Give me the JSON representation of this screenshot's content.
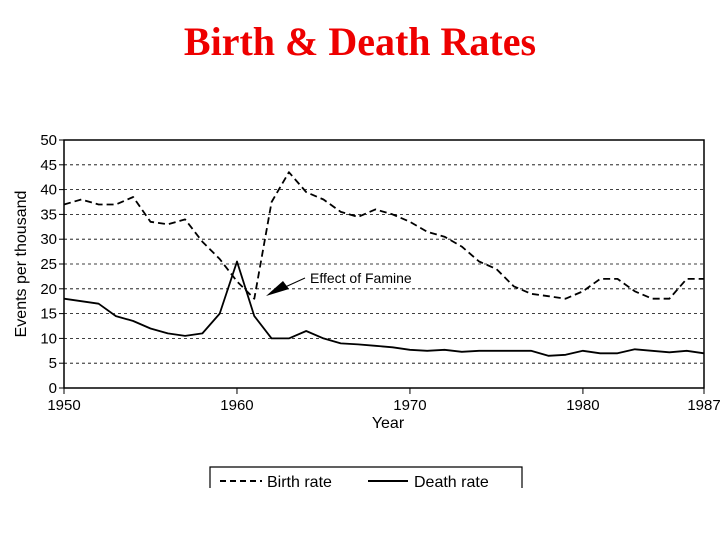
{
  "slide": {
    "title": "Birth & Death Rates"
  },
  "chart_data": {
    "type": "line",
    "title": "Birth & Death Rates",
    "xlabel": "Year",
    "ylabel": "Events per thousand",
    "xlim": [
      1950,
      1987
    ],
    "ylim": [
      0,
      50
    ],
    "yticks": [
      0,
      5,
      10,
      15,
      20,
      25,
      30,
      35,
      40,
      45,
      50
    ],
    "xticks": [
      1950,
      1960,
      1970,
      1980,
      1987
    ],
    "grid": "horizontal-dashed",
    "legend_position": "bottom",
    "annotation": {
      "text": "Effect of Famine",
      "x": 1961,
      "y": 19
    },
    "series": [
      {
        "name": "Birth rate",
        "style": "dashed",
        "x": [
          1950,
          1951,
          1952,
          1953,
          1954,
          1955,
          1956,
          1957,
          1958,
          1959,
          1960,
          1961,
          1962,
          1963,
          1964,
          1965,
          1966,
          1967,
          1968,
          1969,
          1970,
          1971,
          1972,
          1973,
          1974,
          1975,
          1976,
          1977,
          1978,
          1979,
          1980,
          1981,
          1982,
          1983,
          1984,
          1985,
          1986,
          1987
        ],
        "values": [
          37,
          38,
          37,
          37,
          38.5,
          33.5,
          33,
          34,
          29.5,
          26,
          21.5,
          18,
          37.5,
          43.5,
          39.5,
          38,
          35.5,
          34.5,
          36,
          35,
          33.5,
          31.5,
          30.5,
          28.5,
          25.5,
          24,
          20.5,
          19,
          18.5,
          18,
          19.5,
          22,
          22,
          19.5,
          18,
          18,
          22,
          22
        ]
      },
      {
        "name": "Death rate",
        "style": "solid",
        "x": [
          1950,
          1951,
          1952,
          1953,
          1954,
          1955,
          1956,
          1957,
          1958,
          1959,
          1960,
          1961,
          1962,
          1963,
          1964,
          1965,
          1966,
          1967,
          1968,
          1969,
          1970,
          1971,
          1972,
          1973,
          1974,
          1975,
          1976,
          1977,
          1978,
          1979,
          1980,
          1981,
          1982,
          1983,
          1984,
          1985,
          1986,
          1987
        ],
        "values": [
          18,
          17.5,
          17,
          14.5,
          13.5,
          12,
          11,
          10.5,
          11,
          15,
          25.5,
          14.5,
          10,
          10,
          11.5,
          10,
          9,
          8.8,
          8.5,
          8.2,
          7.7,
          7.5,
          7.7,
          7.3,
          7.5,
          7.5,
          7.5,
          7.5,
          6.5,
          6.7,
          7.5,
          7,
          7,
          7.8,
          7.5,
          7.2,
          7.5,
          7
        ]
      }
    ]
  }
}
